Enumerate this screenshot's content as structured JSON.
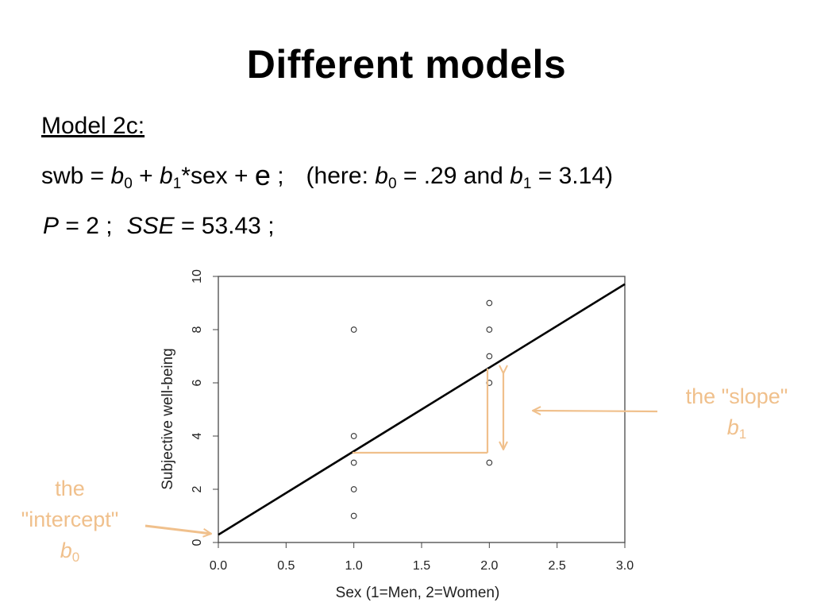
{
  "slide": {
    "title": "Different models",
    "model_label": "Model 2c:",
    "equation": {
      "lhs": "swb = ",
      "b": "b",
      "sub0": "0",
      "sub1": "1",
      "plus": " + ",
      "sex_term": "*sex + ",
      "error": "e",
      "semicolon": " ;",
      "here_open": "(here:  ",
      "b0_value": " = .29 and ",
      "b1_value": " = 3.14)"
    },
    "stats": {
      "p_label": "P",
      "p_value": " = 2 ;",
      "sse_label": "SSE",
      "sse_value": " = 53.43 ;"
    }
  },
  "annotations": {
    "slope_text": "the \"slope\"",
    "slope_symbol": "b",
    "slope_sub": "1",
    "intercept_line1": "the",
    "intercept_line2": "\"intercept\"",
    "intercept_symbol": "b",
    "intercept_sub": "0",
    "color": "#f0c08c"
  },
  "chart_data": {
    "type": "scatter",
    "xlabel": "Sex (1=Men, 2=Women)",
    "ylabel": "Subjective well-being",
    "xlim": [
      0,
      3
    ],
    "ylim": [
      0,
      10
    ],
    "x_ticks": [
      "0.0",
      "0.5",
      "1.0",
      "1.5",
      "2.0",
      "2.5",
      "3.0"
    ],
    "y_ticks": [
      "0",
      "2",
      "4",
      "6",
      "8",
      "10"
    ],
    "points": [
      {
        "x": 1,
        "y": 8
      },
      {
        "x": 1,
        "y": 4
      },
      {
        "x": 1,
        "y": 3
      },
      {
        "x": 1,
        "y": 2
      },
      {
        "x": 1,
        "y": 1
      },
      {
        "x": 2,
        "y": 9
      },
      {
        "x": 2,
        "y": 8
      },
      {
        "x": 2,
        "y": 7
      },
      {
        "x": 2,
        "y": 6
      },
      {
        "x": 2,
        "y": 3
      }
    ],
    "regression": {
      "intercept": 0.29,
      "slope": 3.14
    }
  }
}
